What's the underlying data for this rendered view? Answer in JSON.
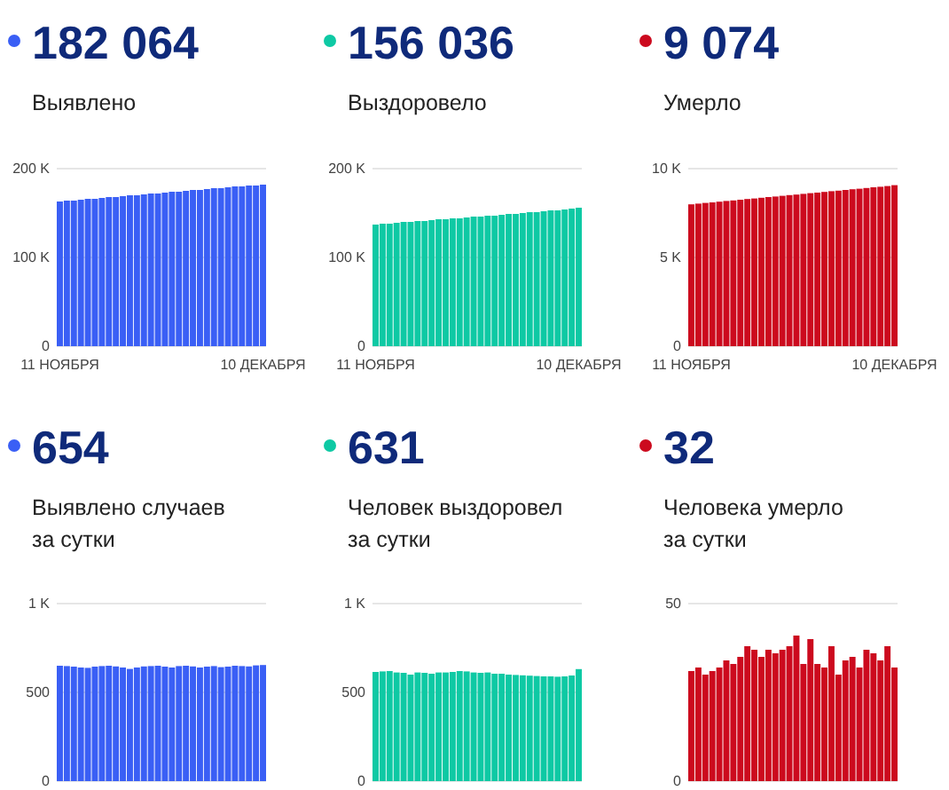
{
  "chart_data": [
    {
      "type": "bar",
      "title": "182 064",
      "subtitle": "Выявлено",
      "color": "#3a5ff5",
      "grid": "y",
      "categories": [
        "11 НОЯБРЯ",
        null,
        null,
        null,
        null,
        null,
        null,
        null,
        null,
        null,
        null,
        null,
        null,
        null,
        null,
        null,
        null,
        null,
        null,
        null,
        null,
        null,
        null,
        null,
        null,
        null,
        null,
        null,
        null,
        "10 ДЕКАБРЯ"
      ],
      "values": [
        163000,
        164000,
        164000,
        165000,
        166000,
        166000,
        167000,
        168000,
        168000,
        169000,
        170000,
        170000,
        171000,
        172000,
        172000,
        173000,
        174000,
        174000,
        175000,
        176000,
        176000,
        177000,
        178000,
        178000,
        179000,
        180000,
        180000,
        181000,
        181000,
        182000
      ],
      "ylim": [
        0,
        200000
      ],
      "yticks": [
        0,
        {
          "value": 100000,
          "label": "100 K"
        },
        {
          "value": 200000,
          "label": "200 K"
        }
      ]
    },
    {
      "type": "bar",
      "title": "156 036",
      "subtitle": "Выздоровело",
      "color": "#0ec9a4",
      "grid": "y",
      "categories": [
        "11 НОЯБРЯ",
        null,
        null,
        null,
        null,
        null,
        null,
        null,
        null,
        null,
        null,
        null,
        null,
        null,
        null,
        null,
        null,
        null,
        null,
        null,
        null,
        null,
        null,
        null,
        null,
        null,
        null,
        null,
        null,
        "10 ДЕКАБРЯ"
      ],
      "values": [
        137000,
        138000,
        138000,
        139000,
        140000,
        140000,
        141000,
        141000,
        142000,
        143000,
        143000,
        144000,
        144000,
        145000,
        146000,
        146000,
        147000,
        147000,
        148000,
        149000,
        149000,
        150000,
        151000,
        151000,
        152000,
        153000,
        153000,
        154000,
        155000,
        156000
      ],
      "ylim": [
        0,
        200000
      ],
      "yticks": [
        0,
        {
          "value": 100000,
          "label": "100 K"
        },
        {
          "value": 200000,
          "label": "200 K"
        }
      ]
    },
    {
      "type": "bar",
      "title": "9 074",
      "subtitle": "Умерло",
      "color": "#cc0a1e",
      "grid": "y",
      "categories": [
        "11 НОЯБРЯ",
        null,
        null,
        null,
        null,
        null,
        null,
        null,
        null,
        null,
        null,
        null,
        null,
        null,
        null,
        null,
        null,
        null,
        null,
        null,
        null,
        null,
        null,
        null,
        null,
        null,
        null,
        null,
        null,
        "10 ДЕКАБРЯ"
      ],
      "values": [
        7990,
        8030,
        8070,
        8100,
        8140,
        8180,
        8210,
        8250,
        8290,
        8320,
        8360,
        8400,
        8430,
        8470,
        8510,
        8540,
        8580,
        8620,
        8650,
        8690,
        8730,
        8760,
        8800,
        8840,
        8870,
        8910,
        8950,
        8980,
        9020,
        9070
      ],
      "ylim": [
        0,
        10000
      ],
      "yticks": [
        0,
        {
          "value": 5000,
          "label": "5 K"
        },
        {
          "value": 10000,
          "label": "10 K"
        }
      ]
    },
    {
      "type": "bar",
      "title": "654",
      "subtitle": "Выявлено случаев\nза сутки",
      "color": "#3a5ff5",
      "grid": "y",
      "categories": [
        null,
        null,
        null,
        null,
        null,
        null,
        null,
        null,
        null,
        null,
        null,
        null,
        null,
        null,
        null,
        null,
        null,
        null,
        null,
        null,
        null,
        null,
        null,
        null,
        null,
        null,
        null,
        null,
        null,
        null
      ],
      "values": [
        650,
        648,
        645,
        640,
        638,
        645,
        648,
        650,
        646,
        640,
        632,
        640,
        646,
        648,
        650,
        645,
        640,
        648,
        650,
        646,
        640,
        645,
        648,
        642,
        645,
        650,
        648,
        646,
        652,
        654
      ],
      "ylim": [
        0,
        1000
      ],
      "yticks": [
        0,
        500,
        {
          "value": 1000,
          "label": "1 K"
        }
      ]
    },
    {
      "type": "bar",
      "title": "631",
      "subtitle": "Человек выздоровел\nза сутки",
      "color": "#0ec9a4",
      "grid": "y",
      "categories": [
        null,
        null,
        null,
        null,
        null,
        null,
        null,
        null,
        null,
        null,
        null,
        null,
        null,
        null,
        null,
        null,
        null,
        null,
        null,
        null,
        null,
        null,
        null,
        null,
        null,
        null,
        null,
        null,
        null,
        null
      ],
      "values": [
        615,
        618,
        620,
        612,
        610,
        600,
        612,
        610,
        605,
        612,
        612,
        615,
        620,
        618,
        612,
        610,
        612,
        605,
        605,
        600,
        598,
        596,
        594,
        592,
        590,
        590,
        588,
        590,
        595,
        631
      ],
      "ylim": [
        0,
        1000
      ],
      "yticks": [
        0,
        500,
        {
          "value": 1000,
          "label": "1 K"
        }
      ]
    },
    {
      "type": "bar",
      "title": "32",
      "subtitle": "Человека умерло\nза сутки",
      "color": "#cc0a1e",
      "grid": "y",
      "categories": [
        null,
        null,
        null,
        null,
        null,
        null,
        null,
        null,
        null,
        null,
        null,
        null,
        null,
        null,
        null,
        null,
        null,
        null,
        null,
        null,
        null,
        null,
        null,
        null,
        null,
        null,
        null,
        null,
        null,
        null
      ],
      "values": [
        31,
        32,
        30,
        31,
        32,
        34,
        33,
        35,
        38,
        37,
        35,
        37,
        36,
        37,
        38,
        41,
        33,
        40,
        33,
        32,
        38,
        30,
        34,
        35,
        32,
        37,
        36,
        34,
        38,
        32
      ],
      "ylim": [
        0,
        50
      ],
      "yticks": [
        0,
        50
      ]
    }
  ]
}
